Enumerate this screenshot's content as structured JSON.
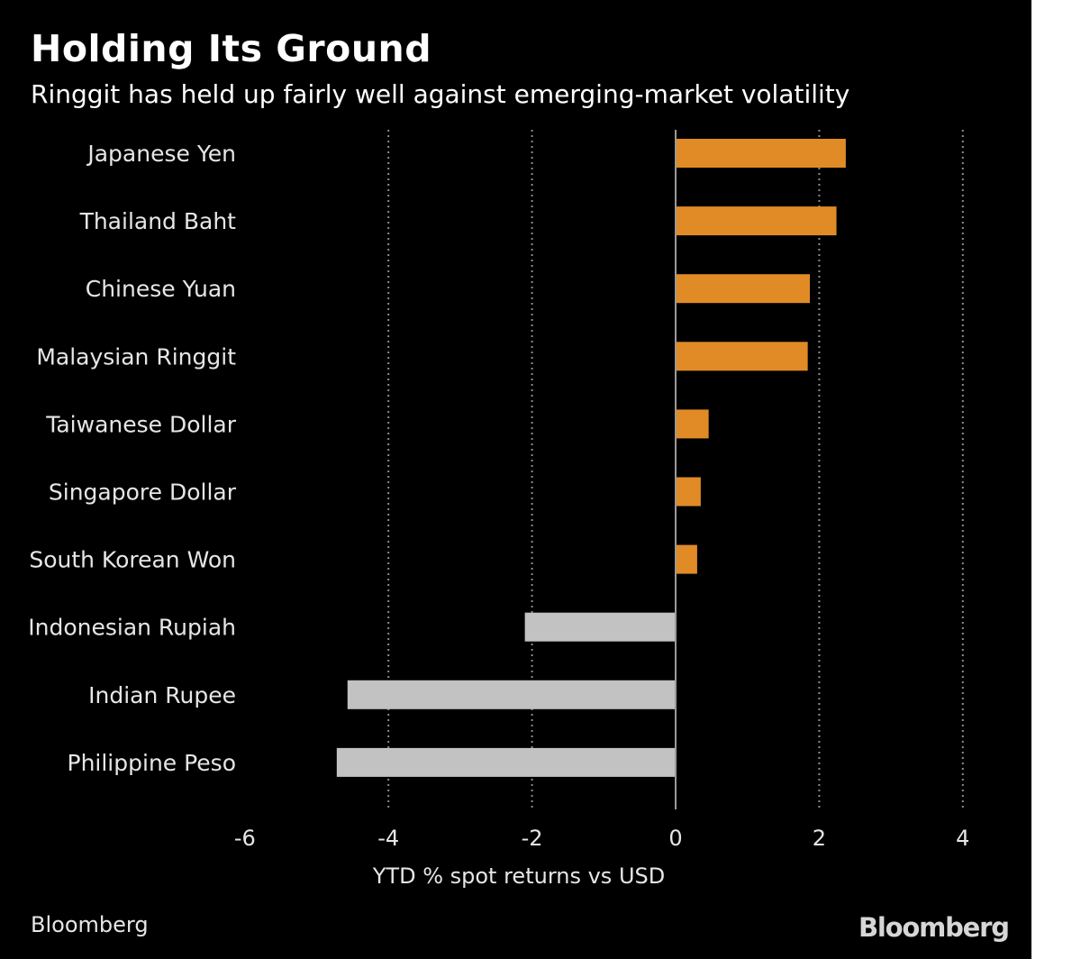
{
  "title": "Holding Its Ground",
  "subtitle": "Ringgit has held up fairly well against emerging-market volatility",
  "source": "Bloomberg",
  "brand": "Bloomberg",
  "colors": {
    "background": "#000000",
    "positive": "#e08b26",
    "negative": "#c2c2c2",
    "grid": "#8c8c8c",
    "zero_line": "#9a9a9a"
  },
  "chart_data": {
    "type": "bar",
    "orientation": "horizontal",
    "title": "Holding Its Ground",
    "subtitle": "Ringgit has held up fairly well against emerging-market volatility",
    "xlabel": "YTD % spot returns vs USD",
    "ylabel": "",
    "xlim": [
      -6,
      4
    ],
    "xticks": [
      -6,
      -4,
      -2,
      0,
      2,
      4
    ],
    "xtick_labels": [
      "-6",
      "-4",
      "-2",
      "0",
      "2",
      "4"
    ],
    "grid": "vertical dotted",
    "categories": [
      "Japanese Yen",
      "Thailand Baht",
      "Chinese Yuan",
      "Malaysian Ringgit",
      "Taiwanese Dollar",
      "Singapore Dollar",
      "South Korean Won",
      "Indonesian Rupiah",
      "Indian Rupee",
      "Philippine Peso"
    ],
    "values": [
      2.37,
      2.24,
      1.87,
      1.84,
      0.46,
      0.35,
      0.3,
      -2.1,
      -4.57,
      -4.72
    ]
  }
}
